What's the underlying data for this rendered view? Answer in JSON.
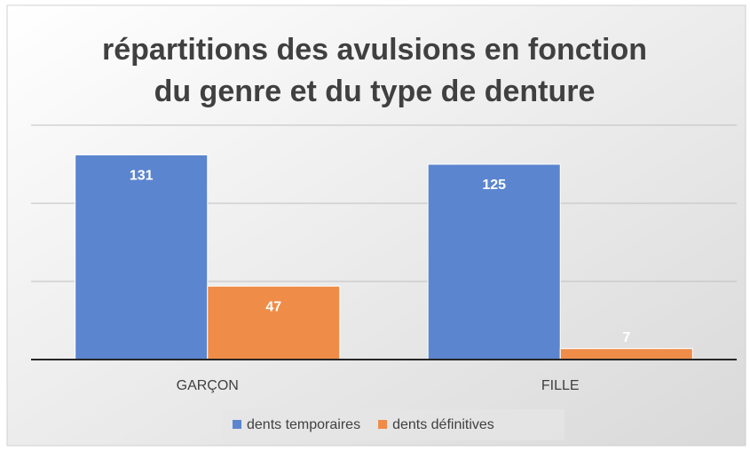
{
  "chart_data": {
    "type": "bar",
    "title": [
      "répartitions des avulsions en fonction",
      "du genre et du type de denture"
    ],
    "categories": [
      "GARÇON",
      "FILLE"
    ],
    "series": [
      {
        "name": "dents temporaires",
        "color": "#5b85cf",
        "values": [
          131,
          125
        ]
      },
      {
        "name": "dents définitives",
        "color": "#ef8c48",
        "values": [
          47,
          7
        ]
      }
    ],
    "ylim": [
      0,
      150
    ],
    "yticks": [
      0,
      50,
      100,
      150
    ],
    "grid": true,
    "legend": "bottom"
  }
}
